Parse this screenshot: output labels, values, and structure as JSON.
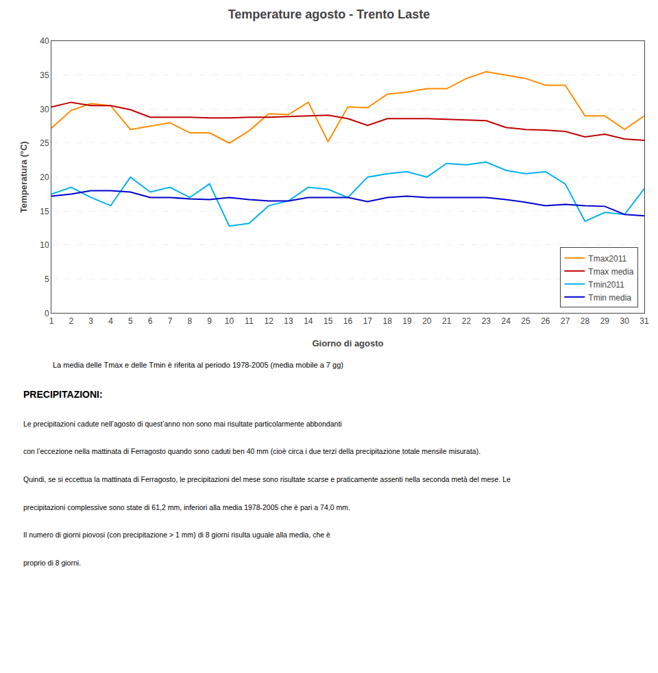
{
  "chart_data": {
    "type": "line",
    "title": "Temperature agosto - Trento Laste",
    "subtitle": "La media delle Tmax e delle Tmin è riferita al periodo 1978-2005 (media mobile a 7 gg)",
    "xlabel": "Giorno di agosto",
    "ylabel": "Temperatura (°C)",
    "x": [
      1,
      2,
      3,
      4,
      5,
      6,
      7,
      8,
      9,
      10,
      11,
      12,
      13,
      14,
      15,
      16,
      17,
      18,
      19,
      20,
      21,
      22,
      23,
      24,
      25,
      26,
      27,
      28,
      29,
      30,
      31
    ],
    "series": [
      {
        "name": "Tmax2011",
        "color": "#FF8C00",
        "values": [
          27.2,
          29.8,
          30.8,
          30.5,
          27.0,
          27.5,
          28.0,
          26.5,
          26.5,
          25.0,
          26.8,
          29.3,
          29.2,
          31.0,
          25.2,
          30.3,
          30.2,
          32.2,
          32.5,
          33.0,
          33.0,
          34.5,
          35.5,
          35.0,
          34.5,
          33.5,
          33.5,
          29.0,
          29.0,
          27.0,
          29.0
        ]
      },
      {
        "name": "Tmax media",
        "color": "#C00000",
        "values": [
          30.3,
          31.0,
          30.5,
          30.5,
          29.9,
          28.8,
          28.8,
          28.8,
          28.7,
          28.7,
          28.8,
          28.8,
          28.9,
          29.0,
          29.1,
          28.6,
          27.6,
          28.6,
          28.6,
          28.6,
          28.5,
          28.4,
          28.3,
          27.3,
          27.0,
          26.9,
          26.7,
          25.9,
          26.3,
          25.6,
          25.4
        ]
      },
      {
        "name": "Tmin2011",
        "color": "#00B0F0",
        "values": [
          17.5,
          18.5,
          17.0,
          15.8,
          20.0,
          17.8,
          18.5,
          17.0,
          19.0,
          12.8,
          13.2,
          15.8,
          16.5,
          18.5,
          18.2,
          17.0,
          20.0,
          20.5,
          20.8,
          20.0,
          22.0,
          21.8,
          22.2,
          21.0,
          20.5,
          20.8,
          19.0,
          13.5,
          14.8,
          14.5,
          18.3
        ]
      },
      {
        "name": "Tmin media",
        "color": "#0000CD",
        "values": [
          17.2,
          17.5,
          18.0,
          18.0,
          17.8,
          17.0,
          17.0,
          16.8,
          16.7,
          17.0,
          16.7,
          16.5,
          16.5,
          17.0,
          17.0,
          17.0,
          16.4,
          17.0,
          17.2,
          17.0,
          17.0,
          17.0,
          17.0,
          16.7,
          16.3,
          15.8,
          16.0,
          15.8,
          15.7,
          14.5,
          14.3
        ]
      }
    ],
    "xlim": [
      1,
      31
    ],
    "xticks": [
      1,
      2,
      3,
      4,
      5,
      6,
      7,
      8,
      9,
      10,
      11,
      12,
      13,
      14,
      15,
      16,
      17,
      18,
      19,
      20,
      21,
      22,
      23,
      24,
      25,
      26,
      27,
      28,
      29,
      30,
      31
    ],
    "ylim": [
      0,
      40
    ],
    "yticks": [
      0,
      5,
      10,
      15,
      20,
      25,
      30,
      35,
      40
    ],
    "grid": true,
    "legend": "lower right",
    "annotations": [
      "PRECIPITAZIONI:",
      "Le precipitazioni cadute nell’agosto di quest’anno non sono mai risultate particolarmente abbondanti",
      "con l’eccezione nella mattinata di Ferragosto quando sono caduti ben 40 mm (cioè circa i due terzi della precipitazione totale mensile misurata).",
      "Quindi, se si eccettua la mattinata di Ferragosto, le precipitazioni del mese sono risultate scarse e praticamente assenti nella seconda metà del mese. Le",
      "precipitazioni complessive sono state di 61,2 mm, inferiori alla media 1978-2005 che è pari a 74,0 mm.",
      "Il numero di giorni piovosi (con precipitazione > 1 mm) di 8 giorni risulta uguale alla media, che è",
      "proprio di 8 giorni."
    ]
  }
}
